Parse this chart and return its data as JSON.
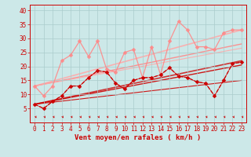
{
  "background_color": "#cce8e8",
  "grid_color": "#aacccc",
  "xlabel": "Vent moyen/en rafales ( km/h )",
  "xlabel_color": "#cc0000",
  "xlabel_fontsize": 6.5,
  "tick_color": "#cc0000",
  "tick_fontsize": 5.5,
  "ylim": [
    0,
    42
  ],
  "xlim": [
    -0.5,
    23.5
  ],
  "yticks": [
    5,
    10,
    15,
    20,
    25,
    30,
    35,
    40
  ],
  "xticks": [
    0,
    1,
    2,
    3,
    4,
    5,
    6,
    7,
    8,
    9,
    10,
    11,
    12,
    13,
    14,
    15,
    16,
    17,
    18,
    19,
    20,
    21,
    22,
    23
  ],
  "dark_series": {
    "x": [
      0,
      1,
      2,
      3,
      4,
      5,
      6,
      7,
      8,
      9,
      10,
      11,
      12,
      13,
      14,
      15,
      16,
      17,
      18,
      19,
      20,
      21,
      22,
      23
    ],
    "y": [
      6.5,
      5.0,
      7.5,
      9.5,
      13.0,
      13.0,
      16.0,
      18.5,
      18.0,
      14.0,
      12.0,
      15.0,
      16.0,
      16.0,
      17.0,
      19.5,
      16.5,
      16.0,
      14.5,
      14.0,
      9.5,
      15.0,
      21.0,
      21.5
    ],
    "color": "#cc0000",
    "linewidth": 0.9,
    "markersize": 2.5
  },
  "light_series": {
    "x": [
      0,
      1,
      2,
      3,
      4,
      5,
      6,
      7,
      8,
      9,
      10,
      11,
      12,
      13,
      14,
      15,
      16,
      17,
      18,
      19,
      20,
      21,
      22,
      23
    ],
    "y": [
      13.0,
      9.5,
      13.0,
      22.0,
      24.0,
      29.0,
      23.5,
      29.0,
      19.0,
      18.0,
      25.0,
      26.0,
      16.0,
      27.0,
      17.0,
      29.0,
      36.0,
      33.0,
      27.0,
      27.0,
      26.0,
      32.0,
      33.0,
      33.0
    ],
    "color": "#ff8888",
    "linewidth": 0.9,
    "markersize": 2.5
  },
  "trend_lines": [
    {
      "x0": 0,
      "y0": 13.0,
      "x1": 23,
      "y1": 33.0,
      "color": "#ffaaaa",
      "lw": 1.2
    },
    {
      "x0": 0,
      "y0": 13.0,
      "x1": 23,
      "y1": 28.0,
      "color": "#ff8888",
      "lw": 1.0
    },
    {
      "x0": 0,
      "y0": 13.0,
      "x1": 23,
      "y1": 26.5,
      "color": "#ffaaaa",
      "lw": 0.8
    },
    {
      "x0": 0,
      "y0": 6.5,
      "x1": 23,
      "y1": 22.0,
      "color": "#cc2222",
      "lw": 1.2
    },
    {
      "x0": 0,
      "y0": 6.5,
      "x1": 23,
      "y1": 20.5,
      "color": "#cc0000",
      "lw": 1.0
    },
    {
      "x0": 0,
      "y0": 6.5,
      "x1": 23,
      "y1": 15.0,
      "color": "#cc0000",
      "lw": 0.8
    }
  ],
  "arrow_color": "#cc0000"
}
